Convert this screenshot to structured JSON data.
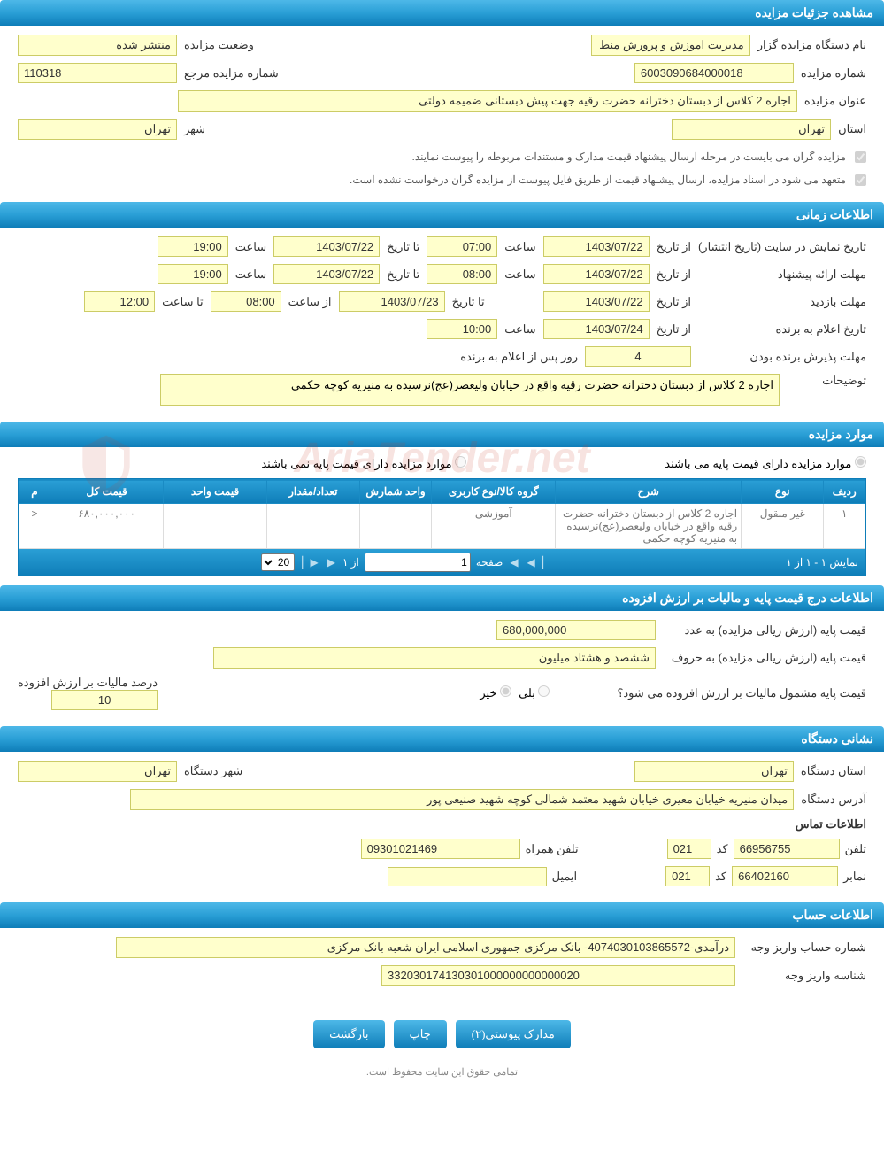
{
  "sections": {
    "details": "مشاهده جزئیات مزایده",
    "timing": "اطلاعات زمانی",
    "items": "موارد مزایده",
    "pricing": "اطلاعات درج قیمت پایه و مالیات بر ارزش افزوده",
    "address": "نشانی دستگاه",
    "account": "اطلاعات حساب"
  },
  "details": {
    "org_label": "نام دستگاه مزایده گزار",
    "org_value": "مدیریت اموزش و پرورش منط",
    "status_label": "وضعیت مزایده",
    "status_value": "منتشر شده",
    "number_label": "شماره مزایده",
    "number_value": "6003090684000018",
    "ref_label": "شماره مزایده مرجع",
    "ref_value": "110318",
    "title_label": "عنوان مزایده",
    "title_value": "اجاره 2 کلاس از دبستان دخترانه حضرت رقیه جهت پیش دبستانی ضمیمه دولتی",
    "province_label": "استان",
    "province_value": "تهران",
    "city_label": "شهر",
    "city_value": "تهران",
    "note1": "مزایده گران می بایست در مرحله ارسال پیشنهاد قیمت مدارک و مستندات مربوطه را پیوست نمایند.",
    "note2": "متعهد می شود در اسناد مزایده، ارسال پیشنهاد قیمت از طریق فایل پیوست از مزایده گران درخواست نشده است."
  },
  "timing": {
    "display_label": "تاریخ نمایش در سایت (تاریخ انتشار)",
    "from_date_label": "از تاریخ",
    "to_date_label": "تا تاریخ",
    "time_label": "ساعت",
    "from_time_label": "از ساعت",
    "to_time_label": "تا ساعت",
    "display_from_date": "1403/07/22",
    "display_from_time": "07:00",
    "display_to_date": "1403/07/22",
    "display_to_time": "19:00",
    "proposal_label": "مهلت ارائه پیشنهاد",
    "proposal_from_date": "1403/07/22",
    "proposal_from_time": "08:00",
    "proposal_to_date": "1403/07/22",
    "proposal_to_time": "19:00",
    "visit_label": "مهلت بازدید",
    "visit_from_date": "1403/07/22",
    "visit_to_date": "1403/07/23",
    "visit_from_time": "08:00",
    "visit_to_time": "12:00",
    "announce_label": "تاریخ اعلام به برنده",
    "announce_date": "1403/07/24",
    "announce_time": "10:00",
    "accept_label": "مهلت پذیرش برنده بودن",
    "accept_value": "4",
    "accept_suffix": "روز پس از اعلام به برنده",
    "desc_label": "توضیحات",
    "desc_value": "اجاره 2 کلاس از دبستان دخترانه حضرت رقیه  واقع در  خیابان  ولیعصر(عج)نرسیده به منیریه کوچه حکمی"
  },
  "items": {
    "radio_has_base": "موارد مزایده دارای قیمت پایه می باشند",
    "radio_no_base": "موارد مزایده دارای قیمت پایه نمی باشند",
    "columns": {
      "row": "ردیف",
      "type": "نوع",
      "desc": "شرح",
      "group": "گروه کالا/نوع کاربری",
      "unit": "واحد شمارش",
      "qty": "تعداد/مقدار",
      "unit_price": "قیمت واحد",
      "total_price": "قیمت کل",
      "m": "م"
    },
    "rows": [
      {
        "idx": "۱",
        "type": "غیر منقول",
        "desc": "اجاره 2 کلاس از دبستان دخترانه حضرت رقیه  واقع در  خیابان ولیعصر(عج)نرسیده به منیریه کوچه حکمی",
        "group": "آموزشی",
        "unit": "",
        "qty": "",
        "unit_price": "",
        "total_price": "۶۸۰,۰۰۰,۰۰۰",
        "m": "<"
      }
    ],
    "pager": {
      "showing": "نمایش ۱ - ۱ از ۱",
      "page_label": "صفحه",
      "page_value": "1",
      "of": "از ۱",
      "per_page": "20"
    }
  },
  "pricing": {
    "base_num_label": "قیمت پایه (ارزش ریالی مزایده) به عدد",
    "base_num_value": "680,000,000",
    "base_text_label": "قیمت پایه (ارزش ریالی مزایده) به حروف",
    "base_text_value": "ششصد و هشتاد میلیون",
    "vat_q": "قیمت پایه مشمول مالیات بر ارزش افزوده می شود؟",
    "yes": "بلی",
    "no": "خیر",
    "vat_pct_label": "درصد مالیات بر ارزش افزوده",
    "vat_pct_value": "10"
  },
  "address": {
    "province_label": "استان دستگاه",
    "province_value": "تهران",
    "city_label": "شهر دستگاه",
    "city_value": "تهران",
    "addr_label": "آدرس دستگاه",
    "addr_value": "میدان منیریه خیابان معیری خیابان شهید معتمد شمالی کوچه شهید صنیعی پور",
    "contact_header": "اطلاعات تماس",
    "phone_label": "تلفن",
    "phone_value": "66956755",
    "code_label": "کد",
    "code_value": "021",
    "mobile_label": "تلفن همراه",
    "mobile_value": "09301021469",
    "fax_label": "نمابر",
    "fax_value": "66402160",
    "fax_code": "021",
    "email_label": "ایمیل",
    "email_value": ""
  },
  "account": {
    "acc_label": "شماره حساب واریز وجه",
    "acc_value": "درآمدی-4074030103865572- بانک مرکزی جمهوری اسلامی ایران شعبه بانک مرکزی",
    "id_label": "شناسه واریز وجه",
    "id_value": "332030174130301000000000000020"
  },
  "buttons": {
    "attachments": "مدارک پیوستی(۲)",
    "print": "چاپ",
    "back": "بازگشت"
  },
  "footer": "تمامی حقوق این سایت محفوظ است.",
  "watermark": "AriaTender.net"
}
